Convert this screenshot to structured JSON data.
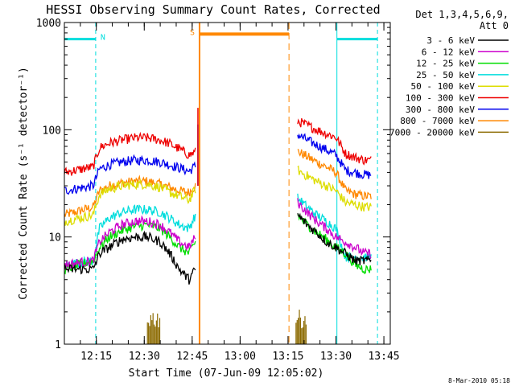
{
  "chart_data": {
    "type": "line",
    "title": "HESSI Observing Summary Count Rates, Corrected",
    "xlabel": "Start Time (07-Jun-09 12:05:02)",
    "ylabel": "Corrected Count Rate (s⁻¹ detector⁻¹)",
    "yscale": "log",
    "xunit": "minutes since 12:05:02",
    "xlim": [
      0,
      102
    ],
    "ylim": [
      1,
      1000
    ],
    "x_ticks": [
      {
        "v": 10,
        "label": "12:15"
      },
      {
        "v": 25,
        "label": "12:30"
      },
      {
        "v": 40,
        "label": "12:45"
      },
      {
        "v": 55,
        "label": "13:00"
      },
      {
        "v": 70,
        "label": "13:15"
      },
      {
        "v": 85,
        "label": "13:30"
      },
      {
        "v": 100,
        "label": "13:45"
      }
    ],
    "y_ticks": [
      {
        "v": 1,
        "label": "1"
      },
      {
        "v": 10,
        "label": "10"
      },
      {
        "v": 100,
        "label": "100"
      },
      {
        "v": 1000,
        "label": "1000"
      }
    ],
    "legend": {
      "placement": "right",
      "header": [
        "Det 1,3,4,5,6,9,",
        "Att 0"
      ]
    },
    "series": [
      {
        "name": "3 - 6 keV",
        "color": "#000000",
        "seg1": [
          [
            0,
            5
          ],
          [
            9,
            5
          ],
          [
            11,
            7
          ],
          [
            14,
            8
          ],
          [
            18,
            9.5
          ],
          [
            22,
            10
          ],
          [
            26,
            10
          ],
          [
            30,
            9
          ],
          [
            33,
            7
          ],
          [
            36,
            5
          ],
          [
            39,
            4
          ],
          [
            41,
            5
          ]
        ],
        "seg2": [
          [
            73,
            16
          ],
          [
            76,
            13
          ],
          [
            79,
            11
          ],
          [
            82,
            9
          ],
          [
            85,
            8
          ],
          [
            88,
            7
          ],
          [
            91,
            6
          ],
          [
            94,
            6
          ],
          [
            96,
            6
          ]
        ]
      },
      {
        "name": "6 - 12 keV",
        "color": "#cc00cc",
        "seg1": [
          [
            0,
            5.5
          ],
          [
            9,
            6
          ],
          [
            11,
            9
          ],
          [
            14,
            11
          ],
          [
            18,
            13
          ],
          [
            22,
            14
          ],
          [
            26,
            14
          ],
          [
            30,
            13
          ],
          [
            33,
            11
          ],
          [
            36,
            9
          ],
          [
            39,
            8
          ],
          [
            41,
            10
          ]
        ],
        "seg2": [
          [
            73,
            21
          ],
          [
            76,
            17
          ],
          [
            79,
            14
          ],
          [
            82,
            12
          ],
          [
            85,
            10
          ],
          [
            88,
            9
          ],
          [
            91,
            8
          ],
          [
            94,
            7
          ],
          [
            96,
            7
          ]
        ]
      },
      {
        "name": "12 - 25 keV",
        "color": "#00dd00",
        "seg1": [
          [
            0,
            5
          ],
          [
            9,
            6
          ],
          [
            11,
            8
          ],
          [
            14,
            10
          ],
          [
            18,
            11.5
          ],
          [
            22,
            12.5
          ],
          [
            26,
            13
          ],
          [
            30,
            12
          ],
          [
            33,
            10
          ],
          [
            36,
            8
          ],
          [
            39,
            7
          ],
          [
            41,
            9
          ]
        ],
        "seg2": [
          [
            73,
            16
          ],
          [
            76,
            13
          ],
          [
            79,
            11
          ],
          [
            82,
            9.5
          ],
          [
            85,
            8
          ],
          [
            88,
            7
          ],
          [
            91,
            5.5
          ],
          [
            94,
            5
          ],
          [
            96,
            5
          ]
        ]
      },
      {
        "name": "25 - 50 keV",
        "color": "#00dddd",
        "seg1": [
          [
            0,
            5.5
          ],
          [
            9,
            6
          ],
          [
            11,
            12
          ],
          [
            14,
            15
          ],
          [
            18,
            17
          ],
          [
            22,
            18
          ],
          [
            26,
            18
          ],
          [
            30,
            17
          ],
          [
            33,
            15
          ],
          [
            36,
            13
          ],
          [
            39,
            12
          ],
          [
            41,
            16
          ]
        ],
        "seg2": [
          [
            73,
            23
          ],
          [
            76,
            19
          ],
          [
            79,
            16
          ],
          [
            82,
            14
          ],
          [
            85,
            12
          ],
          [
            88,
            6.5
          ],
          [
            91,
            6.5
          ],
          [
            94,
            6.5
          ],
          [
            96,
            6.5
          ]
        ]
      },
      {
        "name": "50 - 100 keV",
        "color": "#dddd00",
        "seg1": [
          [
            0,
            14
          ],
          [
            9,
            16
          ],
          [
            11,
            25
          ],
          [
            14,
            28
          ],
          [
            18,
            30
          ],
          [
            22,
            31
          ],
          [
            26,
            31
          ],
          [
            30,
            29
          ],
          [
            33,
            26
          ],
          [
            36,
            24
          ],
          [
            39,
            22
          ],
          [
            41,
            28
          ]
        ],
        "seg2": [
          [
            73,
            42
          ],
          [
            76,
            37
          ],
          [
            79,
            33
          ],
          [
            82,
            30
          ],
          [
            85,
            27
          ],
          [
            88,
            21
          ],
          [
            91,
            20
          ],
          [
            94,
            19
          ],
          [
            96,
            19
          ]
        ]
      },
      {
        "name": "100 - 300 keV",
        "color": "#ee0000",
        "seg1": [
          [
            0,
            40
          ],
          [
            9,
            45
          ],
          [
            11,
            68
          ],
          [
            14,
            75
          ],
          [
            18,
            80
          ],
          [
            22,
            84
          ],
          [
            26,
            84
          ],
          [
            30,
            80
          ],
          [
            33,
            74
          ],
          [
            36,
            66
          ],
          [
            39,
            58
          ],
          [
            41,
            62
          ]
        ],
        "seg2": [
          [
            73,
            120
          ],
          [
            76,
            110
          ],
          [
            79,
            100
          ],
          [
            82,
            92
          ],
          [
            85,
            85
          ],
          [
            88,
            60
          ],
          [
            91,
            55
          ],
          [
            94,
            52
          ],
          [
            96,
            52
          ]
        ]
      },
      {
        "name": "300 - 800 keV",
        "color": "#0000ee",
        "seg1": [
          [
            0,
            27
          ],
          [
            9,
            30
          ],
          [
            11,
            43
          ],
          [
            14,
            47
          ],
          [
            18,
            50
          ],
          [
            22,
            52
          ],
          [
            26,
            52
          ],
          [
            30,
            50
          ],
          [
            33,
            47
          ],
          [
            36,
            44
          ],
          [
            39,
            41
          ],
          [
            41,
            46
          ]
        ],
        "seg2": [
          [
            73,
            90
          ],
          [
            76,
            80
          ],
          [
            79,
            72
          ],
          [
            82,
            65
          ],
          [
            85,
            58
          ],
          [
            88,
            42
          ],
          [
            91,
            40
          ],
          [
            94,
            38
          ],
          [
            96,
            38
          ]
        ]
      },
      {
        "name": "800 - 7000 keV",
        "color": "#ff8800",
        "seg1": [
          [
            0,
            16
          ],
          [
            9,
            19
          ],
          [
            11,
            27
          ],
          [
            14,
            30
          ],
          [
            18,
            32
          ],
          [
            22,
            33
          ],
          [
            26,
            33
          ],
          [
            30,
            31
          ],
          [
            33,
            29
          ],
          [
            36,
            27
          ],
          [
            39,
            26
          ],
          [
            41,
            30
          ]
        ],
        "seg2": [
          [
            73,
            63
          ],
          [
            76,
            56
          ],
          [
            79,
            50
          ],
          [
            82,
            45
          ],
          [
            85,
            40
          ],
          [
            88,
            27
          ],
          [
            91,
            25
          ],
          [
            94,
            24
          ],
          [
            96,
            24
          ]
        ]
      },
      {
        "name": "7000 - 20000 keV",
        "color": "#8b6a00",
        "seg1": [],
        "seg2": []
      }
    ],
    "attenuator": {
      "label": "N",
      "color": "#00dddd",
      "level": 700,
      "segments": [
        [
          0,
          9.8
        ],
        [
          85.3,
          98
        ]
      ],
      "solid_x": [
        85.3
      ],
      "dashed_x": [
        9.8,
        98
      ]
    },
    "saa": {
      "label": "S",
      "color": "#ff8800",
      "level": 780,
      "segment": [
        42.3,
        70.3
      ],
      "solid_x": [
        42.3
      ],
      "dashed_x": [
        70.3
      ]
    },
    "flare_spike": {
      "x": 41.8,
      "peak": 160
    }
  },
  "footer_timestamp": "8-Mar-2010 05:18"
}
